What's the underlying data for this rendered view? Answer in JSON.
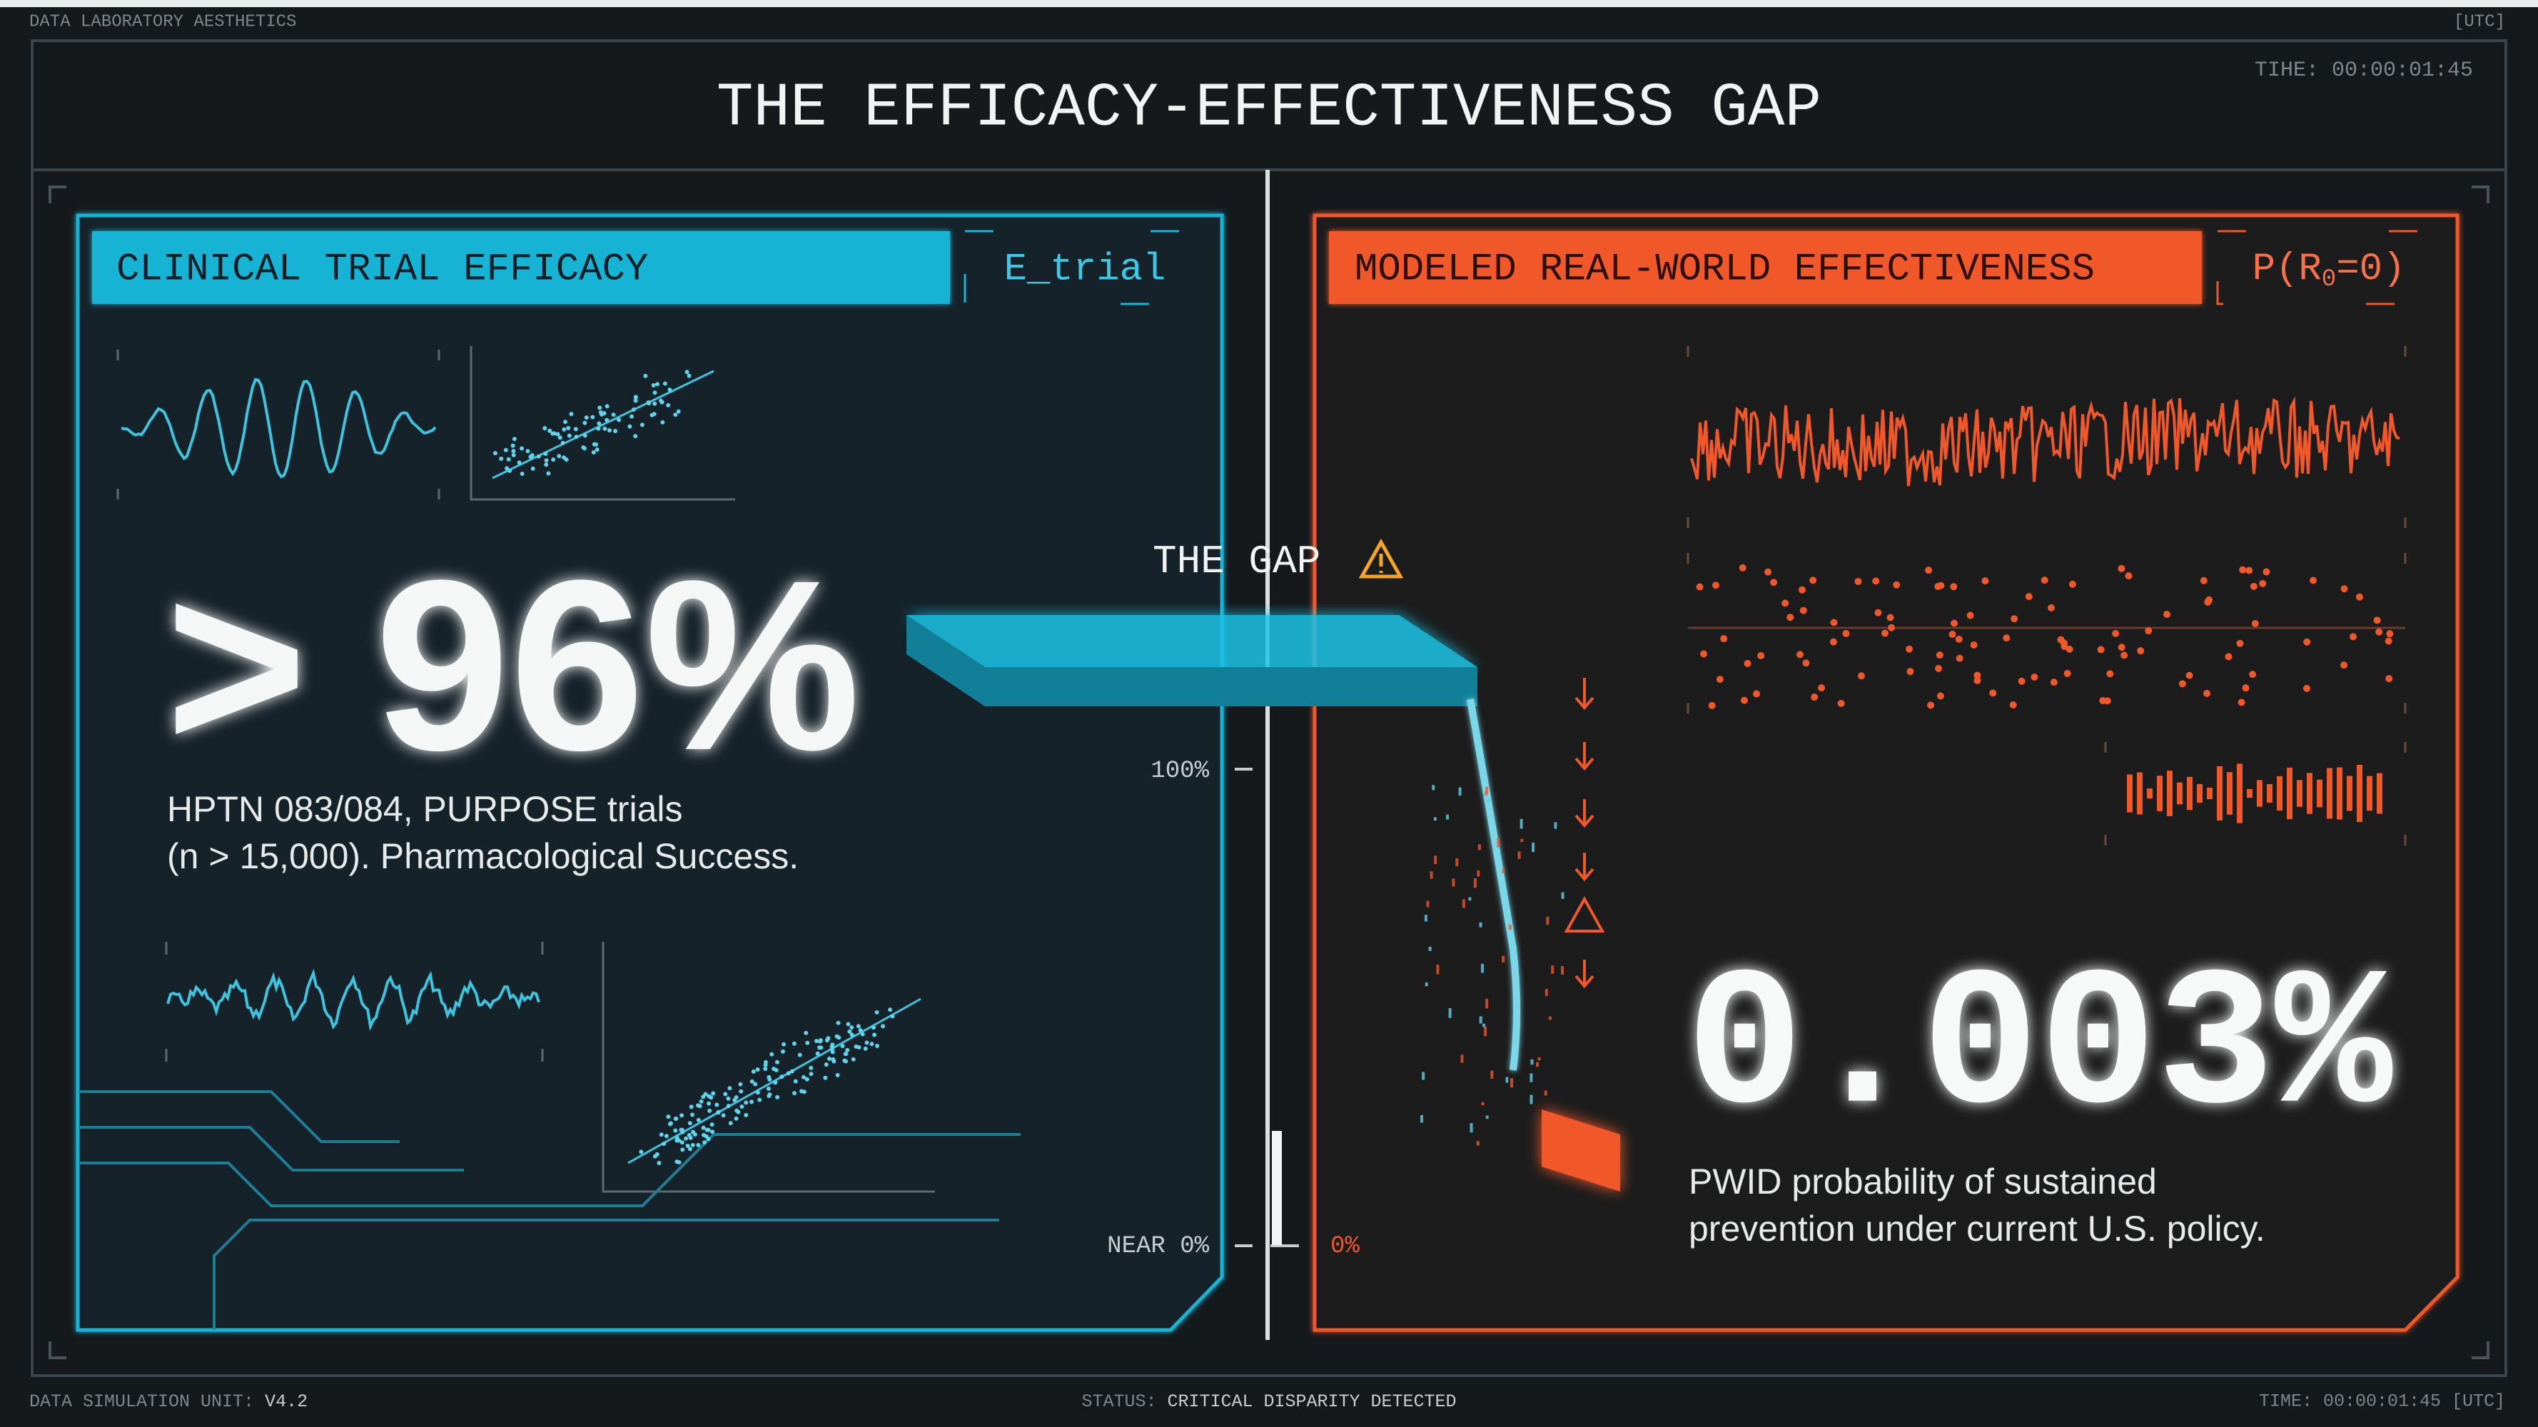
{
  "header": {
    "brand": "DATA LABORATORY AESTHETICS",
    "zone": "[UTC]",
    "title": "THE EFFICACY-EFFECTIVENESS GAP",
    "time": "TIHE: 00:00:01:45"
  },
  "left_panel": {
    "heading": "CLINICAL TRIAL EFFICACY",
    "tag": "E_trial",
    "figure": "> 96%",
    "caption": [
      "HPTN 083/084, PURPOSE trials",
      "(n > 15,000). Pharmacological Success."
    ]
  },
  "gap": {
    "label": "THE GAP",
    "scale_top": "100%",
    "scale_bottom": "NEAR 0%",
    "scale_zero": "0%"
  },
  "right_panel": {
    "heading": "MODELED REAL-WORLD EFFECTIVENESS",
    "tag": {
      "prefix": "P(R",
      "sub": "0",
      "suffix": "=0)"
    },
    "figure": "0.003%",
    "caption": [
      "PWID probability of sustained",
      "prevention under current U.S. policy."
    ]
  },
  "footer": {
    "unit_label": "DATA SIMULATION UNIT:",
    "unit": "V4.2",
    "status_label": "STATUS:",
    "status": "CRITICAL DISPARITY DETECTED",
    "time": "TIME: 00:00:01:45 [UTC]"
  }
}
